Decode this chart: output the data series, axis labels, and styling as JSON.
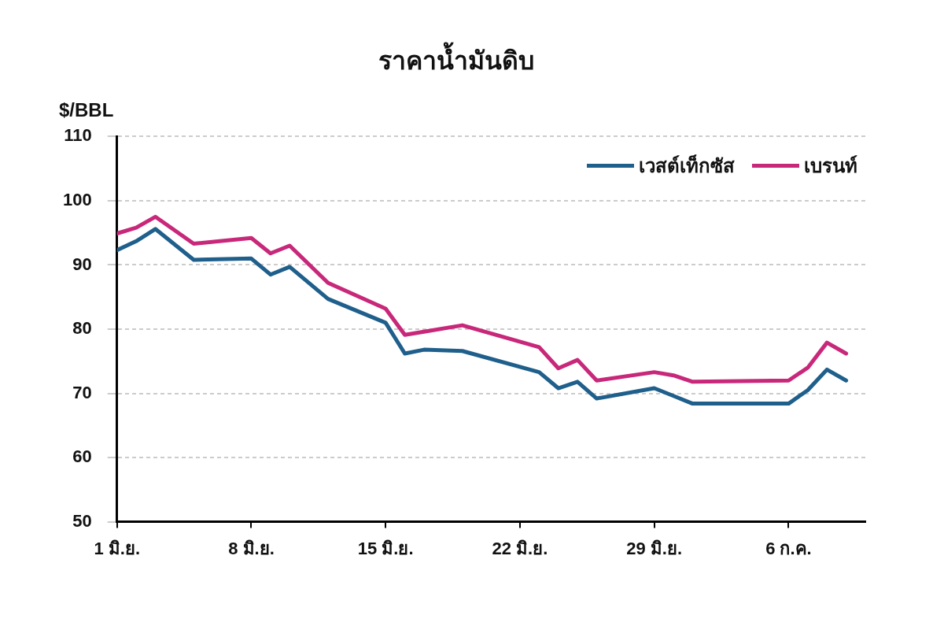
{
  "chart_data": {
    "type": "line",
    "title": "ราคาน้ำมันดิบ",
    "ylabel": "$/BBL",
    "x": [
      "--06-01",
      "--06-02",
      "--06-03",
      "--06-05",
      "--06-08",
      "--06-09",
      "--06-10",
      "--06-12",
      "--06-15",
      "--06-16",
      "--06-17",
      "--06-19",
      "--06-23",
      "--06-24",
      "--06-25",
      "--06-26",
      "--06-29",
      "--06-30",
      "--07-01",
      "--07-06",
      "--07-07",
      "--07-08",
      "--07-09"
    ],
    "series": [
      {
        "name": "เวสต์เท็กซัส",
        "color": "#1f5f8b",
        "values": [
          92.3,
          93.7,
          95.6,
          90.8,
          91.0,
          88.5,
          89.7,
          84.7,
          81.0,
          76.2,
          76.8,
          76.6,
          73.3,
          70.8,
          71.8,
          69.2,
          70.8,
          69.6,
          68.4,
          68.4,
          70.5,
          73.7,
          72.0
        ]
      },
      {
        "name": "เบรนท์",
        "color": "#c8287a",
        "values": [
          94.9,
          95.8,
          97.5,
          93.3,
          94.2,
          91.8,
          93.0,
          87.2,
          83.2,
          79.1,
          79.6,
          80.6,
          77.2,
          73.9,
          75.2,
          72.0,
          73.3,
          72.8,
          71.8,
          72.0,
          74.0,
          77.9,
          76.2
        ]
      }
    ],
    "xlim": [
      "--06-01",
      "--07-10"
    ],
    "xticks": [
      {
        "value": "--06-01",
        "label": "1 มิ.ย."
      },
      {
        "value": "--06-08",
        "label": "8 มิ.ย."
      },
      {
        "value": "--06-15",
        "label": "15 มิ.ย."
      },
      {
        "value": "--06-22",
        "label": "22 มิ.ย."
      },
      {
        "value": "--06-29",
        "label": "29 มิ.ย."
      },
      {
        "value": "--07-06",
        "label": "6 ก.ค."
      }
    ],
    "ylim": [
      50,
      110
    ],
    "yticks": [
      50,
      60,
      70,
      80,
      90,
      100,
      110
    ],
    "grid": "y",
    "legend": "top right",
    "marker": "none",
    "line_style": "solid"
  }
}
